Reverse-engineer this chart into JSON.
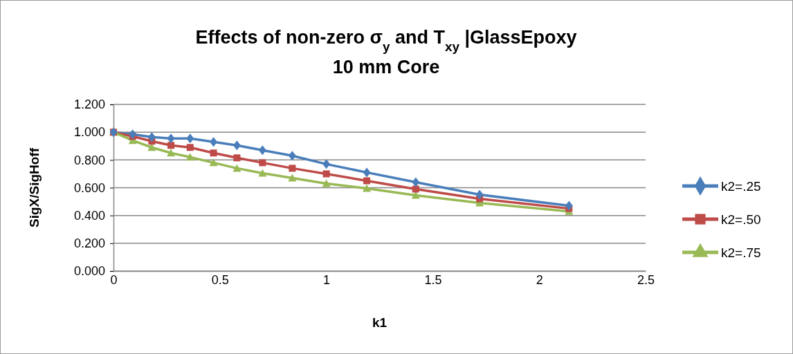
{
  "chart_data": {
    "type": "line",
    "title": "Effects of non-zero σ$_{y}$ and Τ$_{xy}$  |GlassEpoxy",
    "subtitle": "10 mm Core",
    "xlabel": "k1",
    "ylabel": "SigX/SigHoff",
    "x": [
      0,
      0.09,
      0.18,
      0.27,
      0.36,
      0.47,
      0.58,
      0.7,
      0.84,
      1.0,
      1.19,
      1.42,
      1.72,
      2.14
    ],
    "series": [
      {
        "name": "k2=.25",
        "color": "#4a7ebb",
        "marker": "diamond",
        "values": [
          1.0,
          0.985,
          0.965,
          0.955,
          0.955,
          0.93,
          0.905,
          0.87,
          0.83,
          0.77,
          0.71,
          0.64,
          0.55,
          0.47
        ]
      },
      {
        "name": "k2=.50",
        "color": "#be4b48",
        "marker": "square",
        "values": [
          1.0,
          0.97,
          0.935,
          0.905,
          0.89,
          0.85,
          0.815,
          0.78,
          0.74,
          0.7,
          0.65,
          0.59,
          0.52,
          0.45
        ]
      },
      {
        "name": "k2=.75",
        "color": "#98b954",
        "marker": "triangle",
        "values": [
          1.0,
          0.94,
          0.89,
          0.85,
          0.82,
          0.78,
          0.74,
          0.705,
          0.67,
          0.63,
          0.595,
          0.545,
          0.49,
          0.43
        ]
      }
    ],
    "xlim": [
      0,
      2.5
    ],
    "xticks": [
      0,
      0.5,
      1,
      1.5,
      2,
      2.5
    ],
    "ylim": [
      0,
      1.2
    ],
    "yticks": [
      {
        "value": 0,
        "label": "0.000"
      },
      {
        "value": 0.2,
        "label": "0.200"
      },
      {
        "value": 0.4,
        "label": "0.400"
      },
      {
        "value": 0.6,
        "label": "0.600"
      },
      {
        "value": 0.8,
        "label": "0.800"
      },
      {
        "value": 1.0,
        "label": "1.000"
      },
      {
        "value": 1.2,
        "label": "1.200"
      }
    ],
    "grid": "y",
    "legend": "right",
    "line_style": "solid"
  }
}
